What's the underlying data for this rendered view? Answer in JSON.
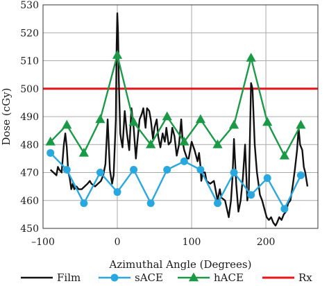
{
  "chart_data": {
    "type": "line",
    "title": "",
    "xlabel": "Azimuthal Angle (Degrees)",
    "ylabel": "Dose (cGy)",
    "xlim": [
      -100,
      270
    ],
    "ylim": [
      450,
      530
    ],
    "x_ticks": [
      -100,
      0,
      100,
      200
    ],
    "x_tick_labels": [
      "–100",
      "0",
      "100",
      "200"
    ],
    "y_ticks": [
      450,
      460,
      470,
      480,
      490,
      500,
      510,
      520,
      530
    ],
    "y_tick_labels": [
      "450",
      "460",
      "470",
      "480",
      "490",
      "500",
      "510",
      "520",
      "530"
    ],
    "grid": true,
    "legend_position": "bottom",
    "legend_items": [
      "Film",
      "sACE",
      "hACE",
      "Rx"
    ],
    "colors": {
      "Film": "#111111",
      "sACE": "#29a8e0",
      "hACE": "#1a9a46",
      "Rx": "#e8141b"
    },
    "series": [
      {
        "name": "Film",
        "style": "line",
        "x": [
          -90,
          -86,
          -82,
          -80,
          -78,
          -75,
          -72,
          -70,
          -68,
          -66,
          -64,
          -62,
          -60,
          -58,
          -55,
          -52,
          -48,
          -44,
          -40,
          -37,
          -35,
          -30,
          -26,
          -22,
          -19,
          -16,
          -13,
          -10,
          -7,
          -5,
          -2,
          -1,
          0,
          1,
          2,
          4,
          5,
          7,
          10,
          13,
          16,
          19,
          22,
          25,
          27,
          30,
          33,
          35,
          38,
          40,
          43,
          45,
          48,
          50,
          53,
          55,
          58,
          61,
          64,
          66,
          69,
          72,
          74,
          77,
          80,
          83,
          86,
          88,
          90,
          94,
          96,
          100,
          104,
          108,
          110,
          112,
          113,
          115,
          118,
          120,
          125,
          130,
          135,
          138,
          140,
          145,
          150,
          153,
          155,
          157,
          160,
          163,
          166,
          169,
          172,
          175,
          177,
          180,
          182,
          185,
          188,
          190,
          192,
          195,
          198,
          201,
          204,
          207,
          210,
          213,
          215,
          218,
          221,
          224,
          227,
          230,
          233,
          236,
          239,
          242,
          244,
          246,
          249,
          251,
          253,
          256
        ],
        "y": [
          471,
          470,
          469,
          472,
          471,
          470,
          480,
          484,
          479,
          470,
          468,
          464,
          466,
          464,
          465,
          464,
          464,
          465,
          466,
          467,
          466,
          465,
          466,
          467,
          469,
          473,
          489,
          471,
          466,
          469,
          489,
          515,
          527,
          520,
          503,
          484,
          482,
          479,
          492,
          484,
          478,
          493,
          486,
          475,
          481,
          489,
          491,
          493,
          486,
          493,
          492,
          489,
          482,
          486,
          489,
          483,
          479,
          484,
          481,
          486,
          480,
          481,
          486,
          483,
          476,
          480,
          489,
          481,
          478,
          475,
          475,
          481,
          478,
          474,
          477,
          472,
          467,
          470,
          470,
          467,
          466,
          467,
          460,
          464,
          461,
          460,
          454,
          460,
          468,
          482,
          466,
          456,
          460,
          468,
          480,
          460,
          464,
          502,
          500,
          480,
          470,
          466,
          462,
          460,
          457,
          454,
          453,
          454,
          452,
          451,
          452,
          454,
          453,
          455,
          456,
          459,
          460,
          465,
          471,
          478,
          486,
          480,
          478,
          472,
          470,
          465
        ]
      },
      {
        "name": "sACE",
        "style": "line+circle",
        "x": [
          -90,
          -68,
          -45,
          -23,
          0,
          22,
          45,
          67,
          90,
          112,
          135,
          157,
          180,
          202,
          225,
          247
        ],
        "y": [
          477,
          471,
          459,
          470,
          463,
          471,
          459,
          471,
          474,
          471,
          459,
          470,
          462,
          468,
          457,
          469
        ]
      },
      {
        "name": "hACE",
        "style": "line+triangle",
        "x": [
          -90,
          -68,
          -45,
          -23,
          0,
          22,
          45,
          67,
          90,
          112,
          135,
          157,
          180,
          202,
          225,
          247
        ],
        "y": [
          481,
          487,
          477,
          489,
          512,
          488,
          480,
          490,
          481,
          489,
          480,
          487,
          511,
          488,
          476,
          487
        ]
      },
      {
        "name": "Rx",
        "style": "hline",
        "y_value": 500
      }
    ]
  }
}
